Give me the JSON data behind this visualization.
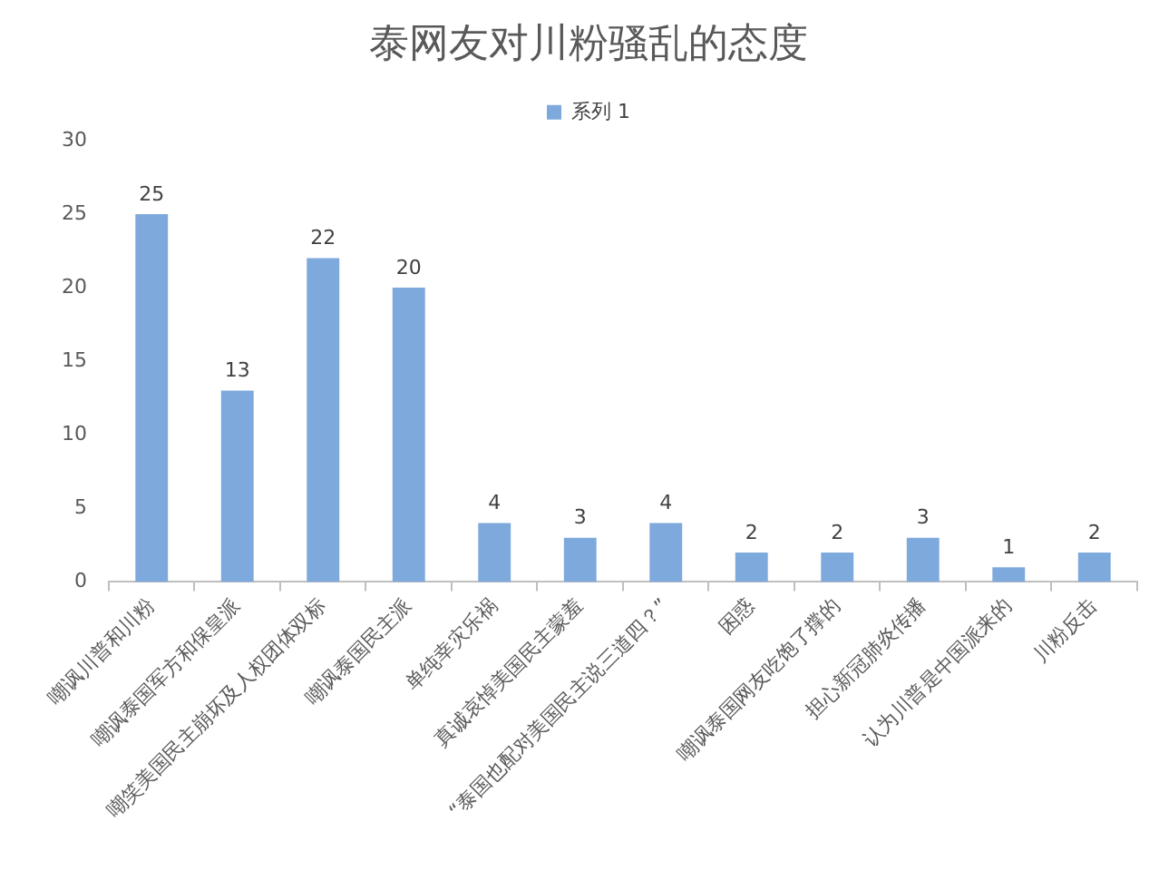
{
  "chart_data": {
    "type": "bar",
    "title": "泰网友对川粉骚乱的态度",
    "categories": [
      "嘲讽川普和川粉",
      "嘲讽泰国军方和保皇派",
      "嘲笑美国民主崩坏及人权团体双标",
      "嘲讽泰国民主派",
      "单纯幸灾乐祸",
      "真诚哀悼美国民主蒙羞",
      "“泰国也配对美国民主说三道四？”",
      "困惑",
      "嘲讽泰国网友吃饱了撑的",
      "担心新冠肺炎传播",
      "认为川普是中国派来的",
      "川粉反击"
    ],
    "series": [
      {
        "name": "系列 1",
        "color": "#7ea9dc",
        "values": [
          25,
          13,
          22,
          20,
          4,
          3,
          4,
          2,
          2,
          3,
          1,
          2
        ]
      }
    ],
    "ylim": [
      0,
      30
    ],
    "yticks": [
      0,
      5,
      10,
      15,
      20,
      25,
      30
    ],
    "grid": false,
    "legend": "top",
    "data_labels": true
  }
}
